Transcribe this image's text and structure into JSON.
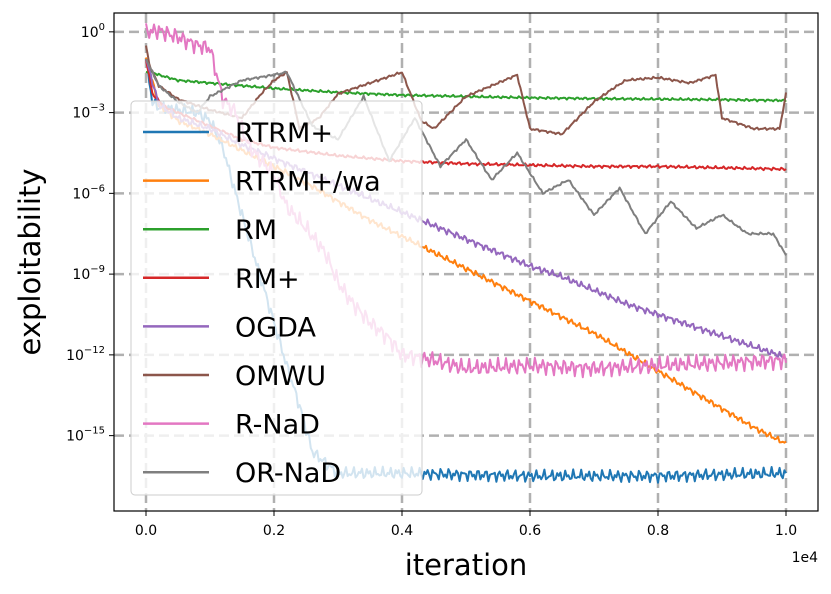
{
  "chart_data": {
    "type": "line",
    "title": "",
    "xlabel": "iteration",
    "ylabel": "exploitability",
    "x_scale_note": "1e4",
    "xlim": [
      -0.05,
      1.05
    ],
    "ylim_log10": [
      -17.8,
      0.7
    ],
    "y_scale": "log",
    "grid": true,
    "legend_position": "upper-left",
    "x_ticks": [
      {
        "value": 0.0,
        "label": "0.0"
      },
      {
        "value": 0.2,
        "label": "0.2"
      },
      {
        "value": 0.4,
        "label": "0.4"
      },
      {
        "value": 0.6,
        "label": "0.6"
      },
      {
        "value": 0.8,
        "label": "0.8"
      },
      {
        "value": 1.0,
        "label": "1.0"
      }
    ],
    "y_ticks": [
      {
        "exp": 0,
        "base": "10",
        "sup": "0"
      },
      {
        "exp": -3,
        "base": "10",
        "sup": "−3"
      },
      {
        "exp": -6,
        "base": "10",
        "sup": "−6"
      },
      {
        "exp": -9,
        "base": "10",
        "sup": "−9"
      },
      {
        "exp": -12,
        "base": "10",
        "sup": "−12"
      },
      {
        "exp": -15,
        "base": "10",
        "sup": "−15"
      }
    ],
    "series": [
      {
        "name": "RTRM+",
        "color": "#1f77b4",
        "x": [
          0.0,
          0.01,
          0.02,
          0.05,
          0.08,
          0.1,
          0.12,
          0.14,
          0.16,
          0.18,
          0.2,
          0.22,
          0.24,
          0.26,
          0.3,
          0.4,
          0.6,
          0.8,
          1.0
        ],
        "y": [
          -1.0,
          -2.6,
          -2.8,
          -2.9,
          -3.0,
          -3.3,
          -4.3,
          -6.0,
          -7.6,
          -9.2,
          -10.8,
          -12.4,
          -13.9,
          -15.6,
          -16.4,
          -16.4,
          -16.5,
          -16.5,
          -16.4
        ]
      },
      {
        "name": "RTRM+/wa",
        "color": "#ff7f0e",
        "x": [
          0.0,
          0.02,
          0.05,
          0.1,
          0.15,
          0.2,
          0.25,
          0.3,
          0.35,
          0.4,
          0.45,
          0.5,
          0.55,
          0.6,
          0.65,
          0.7,
          0.75,
          0.8,
          0.85,
          0.9,
          0.95,
          1.0
        ],
        "y": [
          -1.0,
          -2.7,
          -3.3,
          -3.8,
          -4.4,
          -5.0,
          -5.6,
          -6.3,
          -7.0,
          -7.6,
          -8.2,
          -8.8,
          -9.4,
          -10.0,
          -10.6,
          -11.2,
          -11.9,
          -12.6,
          -13.3,
          -14.0,
          -14.7,
          -15.3
        ]
      },
      {
        "name": "RM",
        "color": "#2ca02c",
        "x": [
          0.0,
          0.01,
          0.02,
          0.05,
          0.1,
          0.15,
          0.2,
          0.3,
          0.4,
          0.5,
          0.6,
          0.7,
          0.8,
          0.9,
          1.0
        ],
        "y": [
          -1.5,
          -1.5,
          -1.6,
          -1.8,
          -1.9,
          -2.0,
          -2.1,
          -2.25,
          -2.35,
          -2.4,
          -2.45,
          -2.48,
          -2.5,
          -2.52,
          -2.55
        ]
      },
      {
        "name": "RM+",
        "color": "#d62728",
        "x": [
          0.0,
          0.01,
          0.03,
          0.05,
          0.1,
          0.15,
          0.2,
          0.3,
          0.4,
          0.5,
          0.6,
          0.7,
          0.8,
          0.9,
          1.0
        ],
        "y": [
          -1.0,
          -2.3,
          -2.8,
          -3.0,
          -3.5,
          -4.0,
          -4.3,
          -4.6,
          -4.8,
          -4.9,
          -4.95,
          -5.0,
          -5.0,
          -5.05,
          -5.1
        ]
      },
      {
        "name": "OGDA",
        "color": "#9467bd",
        "x": [
          0.0,
          0.02,
          0.05,
          0.1,
          0.15,
          0.2,
          0.25,
          0.3,
          0.35,
          0.4,
          0.45,
          0.5,
          0.55,
          0.6,
          0.65,
          0.7,
          0.75,
          0.8,
          0.85,
          0.9,
          0.95,
          1.0
        ],
        "y": [
          -1.0,
          -2.7,
          -3.2,
          -3.6,
          -4.2,
          -4.7,
          -5.2,
          -5.7,
          -6.2,
          -6.7,
          -7.2,
          -7.7,
          -8.2,
          -8.7,
          -9.1,
          -9.6,
          -10.1,
          -10.5,
          -10.9,
          -11.3,
          -11.7,
          -12.1
        ]
      },
      {
        "name": "OMWU",
        "color": "#8c564b",
        "x": [
          0.0,
          0.005,
          0.02,
          0.05,
          0.1,
          0.15,
          0.18,
          0.2,
          0.22,
          0.24,
          0.27,
          0.3,
          0.35,
          0.4,
          0.43,
          0.45,
          0.5,
          0.55,
          0.58,
          0.6,
          0.65,
          0.7,
          0.73,
          0.75,
          0.8,
          0.85,
          0.89,
          0.9,
          0.95,
          0.99,
          1.0
        ],
        "y": [
          -0.5,
          -1.2,
          -2.0,
          -2.5,
          -2.9,
          -3.2,
          -2.3,
          -1.8,
          -1.5,
          -3.6,
          -3.2,
          -2.3,
          -1.9,
          -1.5,
          -3.3,
          -3.6,
          -2.4,
          -1.9,
          -1.6,
          -3.6,
          -3.8,
          -2.6,
          -2.1,
          -1.8,
          -1.7,
          -1.9,
          -1.6,
          -3.2,
          -3.6,
          -3.6,
          -2.3
        ]
      },
      {
        "name": "R-NaD",
        "color": "#e377c2",
        "x": [
          0.0,
          0.02,
          0.05,
          0.08,
          0.1,
          0.12,
          0.14,
          0.16,
          0.18,
          0.2,
          0.22,
          0.25,
          0.28,
          0.3,
          0.32,
          0.35,
          0.38,
          0.4,
          0.45,
          0.5,
          0.6,
          0.7,
          0.8,
          0.9,
          1.0
        ],
        "y": [
          0.0,
          0.05,
          -0.2,
          -0.5,
          -0.6,
          -2.5,
          -3.0,
          -4.2,
          -4.8,
          -5.3,
          -6.5,
          -7.3,
          -8.2,
          -9.3,
          -10.0,
          -10.8,
          -11.4,
          -12.0,
          -12.2,
          -12.5,
          -12.4,
          -12.5,
          -12.4,
          -12.3,
          -12.2
        ]
      },
      {
        "name": "OR-NaD",
        "color": "#7f7f7f",
        "x": [
          0.0,
          0.02,
          0.05,
          0.08,
          0.1,
          0.15,
          0.2,
          0.22,
          0.26,
          0.3,
          0.34,
          0.38,
          0.42,
          0.46,
          0.5,
          0.54,
          0.58,
          0.62,
          0.66,
          0.7,
          0.74,
          0.78,
          0.82,
          0.86,
          0.9,
          0.94,
          0.98,
          1.0
        ],
        "y": [
          -1.0,
          -2.0,
          -2.6,
          -3.0,
          -2.4,
          -1.8,
          -1.6,
          -1.5,
          -3.5,
          -4.0,
          -2.4,
          -4.8,
          -3.2,
          -5.0,
          -4.0,
          -5.5,
          -4.5,
          -6.0,
          -5.5,
          -6.8,
          -5.8,
          -7.5,
          -6.3,
          -7.3,
          -6.8,
          -7.5,
          -7.5,
          -8.3
        ]
      }
    ],
    "legend": [
      "RTRM+",
      "RTRM+/wa",
      "RM",
      "RM+",
      "OGDA",
      "OMWU",
      "R-NaD",
      "OR-NaD"
    ]
  }
}
